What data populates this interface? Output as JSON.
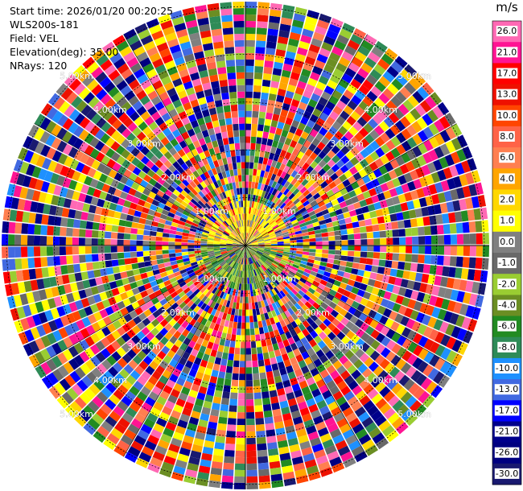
{
  "info": {
    "start_time": "Start time: 2026/01/20 00:20:25",
    "instrument": "WLS200s-181",
    "field": "Field: VEL",
    "elevation": "Elevation(deg): 35.00",
    "nrays": "NRays: 120"
  },
  "chart_data": {
    "type": "heatmap",
    "projection": "polar-ppi",
    "range_ring_labels": [
      "1.00km",
      "2.00km",
      "3.00km",
      "4.00km",
      "5.00km"
    ],
    "colorbar": {
      "unit": "m/s",
      "ticks": [
        "26.0",
        "21.0",
        "17.0",
        "13.0",
        "10.0",
        "8.0",
        "6.0",
        "4.0",
        "2.0",
        "1.0",
        "0.0",
        "-1.0",
        "-2.0",
        "-4.0",
        "-6.0",
        "-8.0",
        "-10.0",
        "-13.0",
        "-17.0",
        "-21.0",
        "-26.0",
        "-30.0"
      ],
      "colors": [
        "#ff69b4",
        "#ff1493",
        "#ff0000",
        "#ee1100",
        "#ff4500",
        "#ff6347",
        "#ff7f50",
        "#ffa500",
        "#ffd700",
        "#ffff00",
        "#808080",
        "#696969",
        "#9acd32",
        "#6b8e23",
        "#228b22",
        "#2e8b57",
        "#1e90ff",
        "#4169e1",
        "#0000ff",
        "#00008b",
        "#000080",
        "#191970"
      ]
    }
  }
}
